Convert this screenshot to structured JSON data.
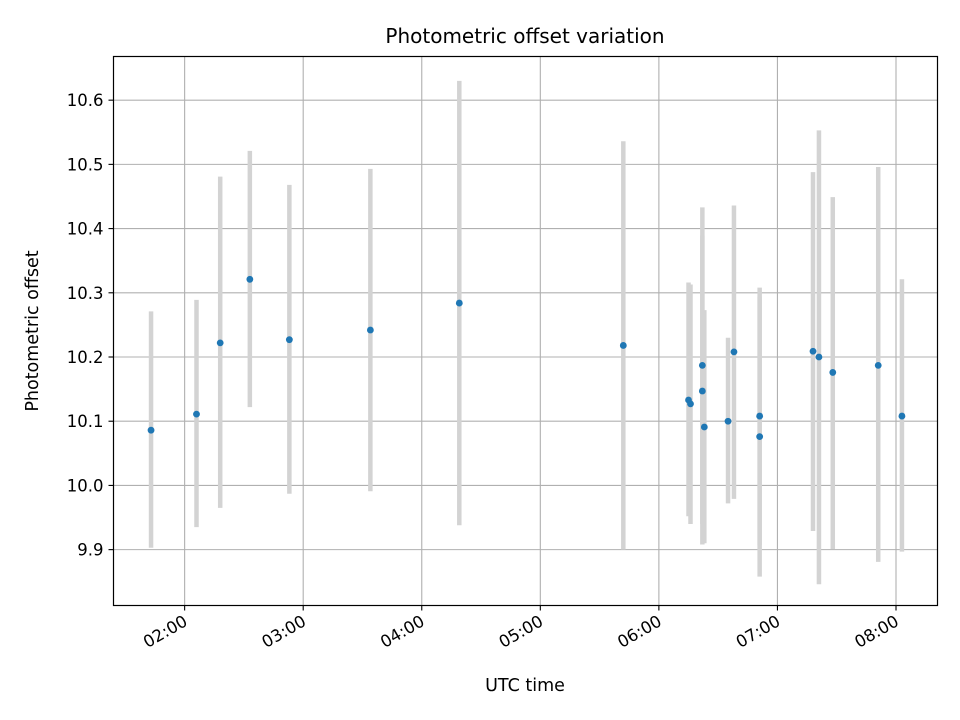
{
  "chart_data": {
    "type": "scatter",
    "title": "Photometric offset variation",
    "xlabel": "UTC time",
    "ylabel": "Photometric offset",
    "x_unit": "UTC time of day (HH:MM)",
    "xlim": [
      "01:24",
      "08:21"
    ],
    "ylim": [
      9.813,
      10.668
    ],
    "xticks": [
      "02:00",
      "03:00",
      "04:00",
      "05:00",
      "06:00",
      "07:00",
      "08:00"
    ],
    "yticks": [
      9.9,
      10.0,
      10.1,
      10.2,
      10.3,
      10.4,
      10.5,
      10.6
    ],
    "grid": true,
    "colors": {
      "point": "#1f77b4",
      "errorbar": "#d3d3d3",
      "grid": "#b0b0b0",
      "axes": "#000000"
    },
    "series": [
      {
        "points": [
          {
            "x": "01:43",
            "y": 10.086,
            "ylow": 9.903,
            "yhigh": 10.271
          },
          {
            "x": "02:06",
            "y": 10.111,
            "ylow": 9.935,
            "yhigh": 10.289
          },
          {
            "x": "02:18",
            "y": 10.222,
            "ylow": 9.965,
            "yhigh": 10.481
          },
          {
            "x": "02:33",
            "y": 10.321,
            "ylow": 10.122,
            "yhigh": 10.521
          },
          {
            "x": "02:53",
            "y": 10.227,
            "ylow": 9.987,
            "yhigh": 10.468
          },
          {
            "x": "03:34",
            "y": 10.242,
            "ylow": 9.991,
            "yhigh": 10.493
          },
          {
            "x": "04:19",
            "y": 10.284,
            "ylow": 9.938,
            "yhigh": 10.63
          },
          {
            "x": "05:42",
            "y": 10.218,
            "ylow": 9.9,
            "yhigh": 10.536
          },
          {
            "x": "06:15",
            "y": 10.133,
            "ylow": 9.952,
            "yhigh": 10.316
          },
          {
            "x": "06:16",
            "y": 10.127,
            "ylow": 9.94,
            "yhigh": 10.313
          },
          {
            "x": "06:22",
            "y": 10.187,
            "ylow": 9.94,
            "yhigh": 10.433
          },
          {
            "x": "06:22",
            "y": 10.147,
            "ylow": 9.908,
            "yhigh": 10.389
          },
          {
            "x": "06:23",
            "y": 10.091,
            "ylow": 9.91,
            "yhigh": 10.273
          },
          {
            "x": "06:35",
            "y": 10.1,
            "ylow": 9.972,
            "yhigh": 10.23
          },
          {
            "x": "06:38",
            "y": 10.208,
            "ylow": 9.979,
            "yhigh": 10.436
          },
          {
            "x": "06:51",
            "y": 10.108,
            "ylow": 9.907,
            "yhigh": 10.308
          },
          {
            "x": "06:51",
            "y": 10.076,
            "ylow": 9.858,
            "yhigh": 10.294
          },
          {
            "x": "07:18",
            "y": 10.209,
            "ylow": 9.929,
            "yhigh": 10.488
          },
          {
            "x": "07:21",
            "y": 10.2,
            "ylow": 9.846,
            "yhigh": 10.553
          },
          {
            "x": "07:28",
            "y": 10.176,
            "ylow": 9.901,
            "yhigh": 10.449
          },
          {
            "x": "07:51",
            "y": 10.187,
            "ylow": 9.881,
            "yhigh": 10.496
          },
          {
            "x": "08:03",
            "y": 10.108,
            "ylow": 9.897,
            "yhigh": 10.321
          }
        ]
      }
    ]
  }
}
